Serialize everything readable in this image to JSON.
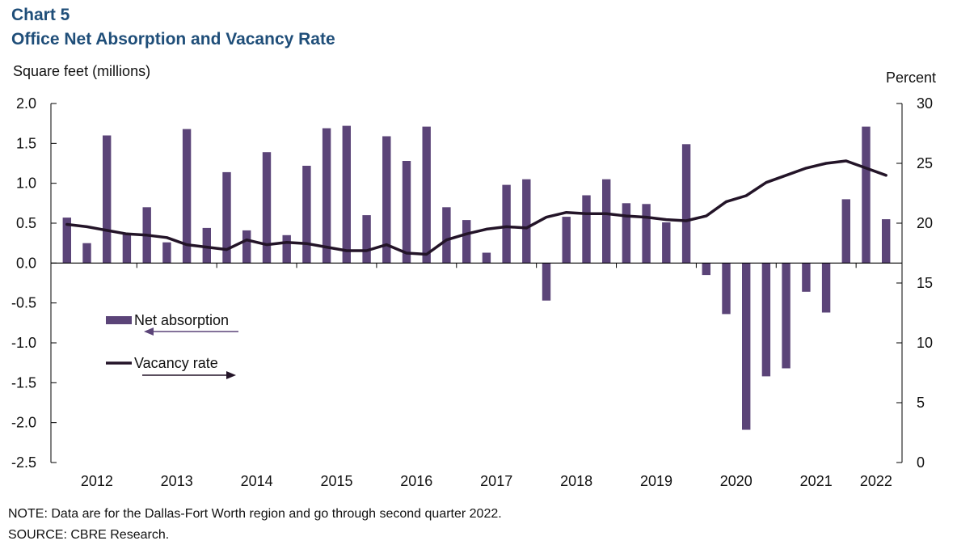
{
  "header": {
    "chart_number": "Chart 5",
    "title": "Office Net Absorption and Vacancy Rate"
  },
  "footer": {
    "note": "NOTE: Data are for the Dallas-Fort Worth region and go through second quarter 2022.",
    "source": "SOURCE: CBRE Research."
  },
  "colors": {
    "bar": "#5b4478",
    "line": "#231428",
    "axis": "#000000",
    "title": "#1f4e79"
  },
  "chart_data": {
    "type": "bar+line",
    "title": "Office Net Absorption and Vacancy Rate",
    "ylabel_left": "Square feet (millions)",
    "ylabel_right": "Percent",
    "ylim_left": [
      -2.5,
      2.0
    ],
    "yticks_left": [
      "2.0",
      "1.5",
      "1.0",
      "0.5",
      "0.0",
      "-0.5",
      "-1.0",
      "-1.5",
      "-2.0",
      "-2.5"
    ],
    "ylim_right": [
      0,
      30
    ],
    "yticks_right": [
      "30",
      "25",
      "20",
      "15",
      "10",
      "5",
      "0"
    ],
    "year_labels": [
      "2012",
      "2013",
      "2014",
      "2015",
      "2016",
      "2017",
      "2018",
      "2019",
      "2020",
      "2021",
      "2022"
    ],
    "series": [
      {
        "name": "Net absorption",
        "type": "bar",
        "axis": "left",
        "values": [
          0.57,
          0.25,
          1.6,
          0.36,
          0.7,
          0.26,
          1.68,
          0.44,
          1.14,
          0.41,
          1.39,
          0.35,
          1.22,
          1.69,
          1.72,
          0.6,
          1.59,
          1.28,
          1.71,
          0.7,
          0.54,
          0.13,
          0.98,
          1.05,
          -0.47,
          0.58,
          0.85,
          1.05,
          0.75,
          0.74,
          0.51,
          1.49,
          -0.15,
          -0.64,
          -2.09,
          -1.42,
          -1.32,
          -0.36,
          -0.62,
          0.8,
          1.71,
          0.55
        ]
      },
      {
        "name": "Vacancy rate",
        "type": "line",
        "axis": "right",
        "values": [
          19.9,
          19.7,
          19.4,
          19.1,
          19.0,
          18.8,
          18.2,
          18.0,
          17.8,
          18.6,
          18.2,
          18.4,
          18.3,
          18.0,
          17.7,
          17.7,
          18.2,
          17.5,
          17.4,
          18.6,
          19.1,
          19.5,
          19.7,
          19.6,
          20.5,
          20.9,
          20.8,
          20.8,
          20.6,
          20.5,
          20.3,
          20.2,
          20.6,
          21.8,
          22.3,
          23.4,
          24.0,
          24.6,
          25.0,
          25.2,
          24.6,
          24.0
        ]
      }
    ],
    "legend": {
      "position": "left",
      "bar_label": "Net absorption",
      "line_label": "Vacancy rate"
    }
  }
}
